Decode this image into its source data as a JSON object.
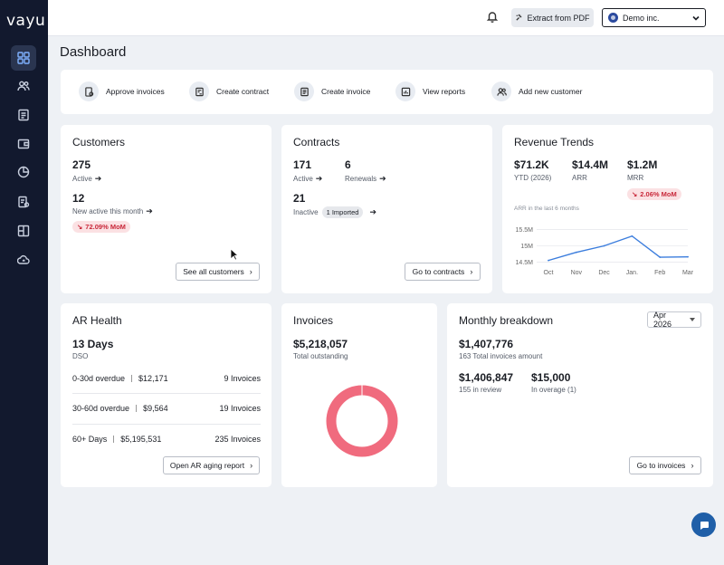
{
  "app": {
    "logo": "vayu"
  },
  "topbar": {
    "extract_label": "Extract from PDF",
    "org_name": "Demo inc."
  },
  "page": {
    "title": "Dashboard"
  },
  "quick_actions": [
    {
      "label": "Approve invoices",
      "icon": "approve-invoice-icon"
    },
    {
      "label": "Create contract",
      "icon": "contract-icon"
    },
    {
      "label": "Create invoice",
      "icon": "invoice-icon"
    },
    {
      "label": "View reports",
      "icon": "reports-icon"
    },
    {
      "label": "Add new customer",
      "icon": "add-customer-icon"
    }
  ],
  "customers": {
    "title": "Customers",
    "active_count": "275",
    "active_label": "Active",
    "new_count": "12",
    "new_label": "New active this month",
    "mom": "72.09% MoM",
    "button": "See all customers"
  },
  "contracts": {
    "title": "Contracts",
    "active_count": "171",
    "active_label": "Active",
    "renewals_count": "6",
    "renewals_label": "Renewals",
    "inactive_count": "21",
    "inactive_label": "Inactive",
    "imported_badge": "1 Imported",
    "button": "Go to contracts"
  },
  "revenue": {
    "title": "Revenue Trends",
    "ytd_value": "$71.2K",
    "ytd_label": "YTD (2026)",
    "arr_value": "$14.4M",
    "arr_label": "ARR",
    "mrr_value": "$1.2M",
    "mrr_label": "MRR",
    "mom": "2.06% MoM",
    "chart_caption": "ARR in the last 6 months"
  },
  "chart_data": {
    "type": "line",
    "title": "ARR in the last 6 months",
    "categories": [
      "Oct",
      "Nov",
      "Dec",
      "Jan.",
      "Feb",
      "Mar"
    ],
    "series": [
      {
        "values": [
          14.55,
          14.8,
          15.0,
          15.3,
          14.65,
          14.66
        ]
      }
    ],
    "y_ticks": [
      "15.5M",
      "15M",
      "14.5M"
    ],
    "y_tick_values": [
      15.5,
      15.0,
      14.5
    ],
    "ylim": [
      14.4,
      15.6
    ],
    "grid": true,
    "color": "#3b7ddd"
  },
  "ar_health": {
    "title": "AR Health",
    "dso_value": "13 Days",
    "dso_label": "DSO",
    "rows": [
      {
        "range": "0-30d overdue",
        "amount": "$12,171",
        "invoices": "9 Invoices"
      },
      {
        "range": "30-60d overdue",
        "amount": "$9,564",
        "invoices": "19 Invoices"
      },
      {
        "range": "60+ Days",
        "amount": "$5,195,531",
        "invoices": "235 Invoices"
      }
    ],
    "button": "Open AR aging report"
  },
  "invoices": {
    "title": "Invoices",
    "total": "$5,218,057",
    "total_label": "Total outstanding",
    "donut_color": "#f06b7e"
  },
  "monthly": {
    "title": "Monthly breakdown",
    "month": "Apr 2026",
    "total": "$1,407,776",
    "total_label": "163 Total invoices amount",
    "review_value": "$1,406,847",
    "review_label": "155 in review",
    "overage_value": "$15,000",
    "overage_label": "In overage (1)",
    "button": "Go to invoices"
  }
}
